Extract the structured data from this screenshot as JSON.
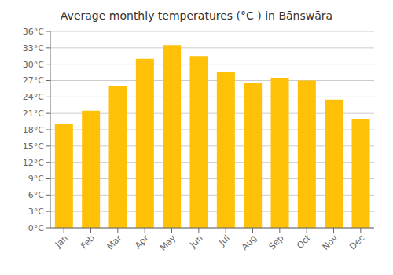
{
  "chart_data": {
    "type": "bar",
    "title": "Average monthly temperatures (°C ) in Bānswāra",
    "categories": [
      "Jan",
      "Feb",
      "Mar",
      "Apr",
      "May",
      "Jun",
      "Jul",
      "Aug",
      "Sep",
      "Oct",
      "Nov",
      "Dec"
    ],
    "values": [
      19.0,
      21.5,
      26.0,
      31.0,
      33.5,
      31.5,
      28.5,
      26.5,
      27.5,
      27.0,
      23.5,
      20.0
    ],
    "color": "#FFC107",
    "ylim": [
      0,
      36
    ],
    "yticks": [
      {
        "value": 0,
        "label": "0°C"
      },
      {
        "value": 3,
        "label": "3°C"
      },
      {
        "value": 6,
        "label": "6°C"
      },
      {
        "value": 9,
        "label": "9°C"
      },
      {
        "value": 12,
        "label": "12°C"
      },
      {
        "value": 15,
        "label": "15°C"
      },
      {
        "value": 18,
        "label": "18°C"
      },
      {
        "value": 21,
        "label": "21°C"
      },
      {
        "value": 24,
        "label": "24°C"
      },
      {
        "value": 27,
        "label": "27°C"
      },
      {
        "value": 30,
        "label": "30°C"
      },
      {
        "value": 33,
        "label": "33°C"
      },
      {
        "value": 36,
        "label": "36°C"
      }
    ],
    "grid": true
  }
}
